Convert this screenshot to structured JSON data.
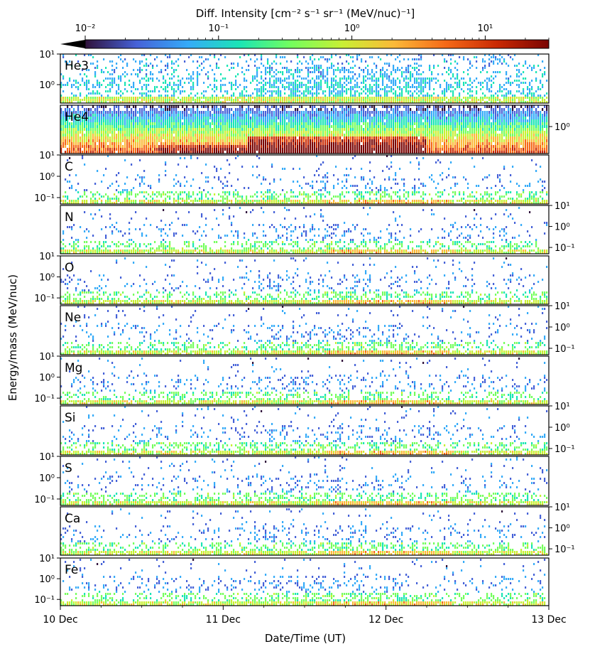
{
  "colorbar": {
    "label": "Diff. Intensity [cm⁻² s⁻¹ sr⁻¹ (MeV/nuc)⁻¹]",
    "tick_labels": [
      "10⁻²",
      "10⁻¹",
      "10⁰",
      "10¹"
    ],
    "tick_values": [
      0.01,
      0.1,
      1,
      10
    ],
    "range": [
      0.01,
      30
    ],
    "scale": "log",
    "colormap": "turbo",
    "extend": "min",
    "colors": [
      "#30123b",
      "#4662d8",
      "#35abf8",
      "#1be5b5",
      "#74fe5d",
      "#c9ef34",
      "#fbb938",
      "#f56918",
      "#c92903",
      "#7a0403"
    ]
  },
  "axes": {
    "ylabel": "Energy/mass (MeV/nuc)",
    "xlabel": "Date/Time (UT)",
    "x_tick_labels": [
      "10 Dec",
      "11 Dec",
      "12 Dec",
      "13 Dec"
    ],
    "x_range_days": [
      0,
      3
    ]
  },
  "chart_data": {
    "type": "heatmap",
    "x": [
      "10 Dec",
      "11 Dec",
      "12 Dec",
      "13 Dec"
    ],
    "y_scale": "log",
    "panels": [
      {
        "species": "He3",
        "tick_labels": [
          "10¹",
          "10⁰"
        ],
        "tick_values": [
          10,
          1
        ],
        "axis_side": "left",
        "ylim": [
          0.25,
          10
        ]
      },
      {
        "species": "He4",
        "tick_labels": [
          "10⁰"
        ],
        "tick_values": [
          1
        ],
        "axis_side": "right",
        "ylim": [
          0.25,
          3
        ]
      },
      {
        "species": "C",
        "tick_labels": [
          "10¹",
          "10⁰",
          "10⁻¹"
        ],
        "tick_values": [
          10,
          1,
          0.1
        ],
        "axis_side": "left",
        "ylim": [
          0.05,
          10
        ]
      },
      {
        "species": "N",
        "tick_labels": [
          "10¹",
          "10⁰",
          "10⁻¹"
        ],
        "tick_values": [
          10,
          1,
          0.1
        ],
        "axis_side": "right",
        "ylim": [
          0.05,
          10
        ]
      },
      {
        "species": "O",
        "tick_labels": [
          "10¹",
          "10⁰",
          "10⁻¹"
        ],
        "tick_values": [
          10,
          1,
          0.1
        ],
        "axis_side": "left",
        "ylim": [
          0.05,
          10
        ]
      },
      {
        "species": "Ne",
        "tick_labels": [
          "10¹",
          "10⁰",
          "10⁻¹"
        ],
        "tick_values": [
          10,
          1,
          0.1
        ],
        "axis_side": "right",
        "ylim": [
          0.05,
          10
        ]
      },
      {
        "species": "Mg",
        "tick_labels": [
          "10¹",
          "10⁰",
          "10⁻¹"
        ],
        "tick_values": [
          10,
          1,
          0.1
        ],
        "axis_side": "left",
        "ylim": [
          0.05,
          10
        ]
      },
      {
        "species": "Si",
        "tick_labels": [
          "10¹",
          "10⁰",
          "10⁻¹"
        ],
        "tick_values": [
          10,
          1,
          0.1
        ],
        "axis_side": "right",
        "ylim": [
          0.05,
          10
        ]
      },
      {
        "species": "S",
        "tick_labels": [
          "10¹",
          "10⁰",
          "10⁻¹"
        ],
        "tick_values": [
          10,
          1,
          0.1
        ],
        "axis_side": "left",
        "ylim": [
          0.05,
          10
        ]
      },
      {
        "species": "Ca",
        "tick_labels": [
          "10¹",
          "10⁰",
          "10⁻¹"
        ],
        "tick_values": [
          10,
          1,
          0.1
        ],
        "axis_side": "right",
        "ylim": [
          0.05,
          10
        ]
      },
      {
        "species": "Fe",
        "tick_labels": [
          "10¹",
          "10⁰",
          "10⁻¹"
        ],
        "tick_values": [
          10,
          1,
          0.1
        ],
        "axis_side": "left",
        "ylim": [
          0.05,
          10
        ]
      }
    ]
  }
}
